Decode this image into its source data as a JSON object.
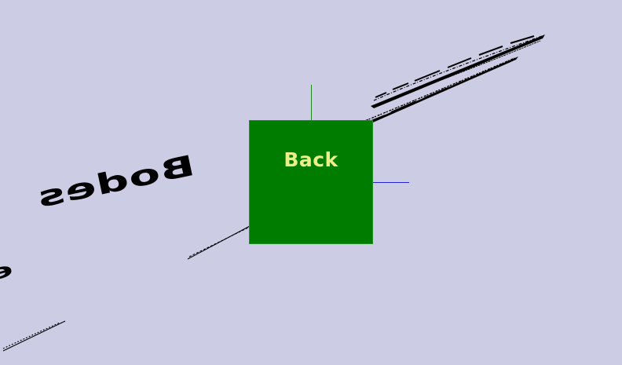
{
  "scene": {
    "background_color": "#cccce4",
    "cube_face": {
      "label": "Back",
      "face_color": "#007c00",
      "label_color": "#eeee88"
    },
    "axes": {
      "y_axis_color": "#1c8a1c",
      "x_axis_color": "#2222cc"
    }
  }
}
